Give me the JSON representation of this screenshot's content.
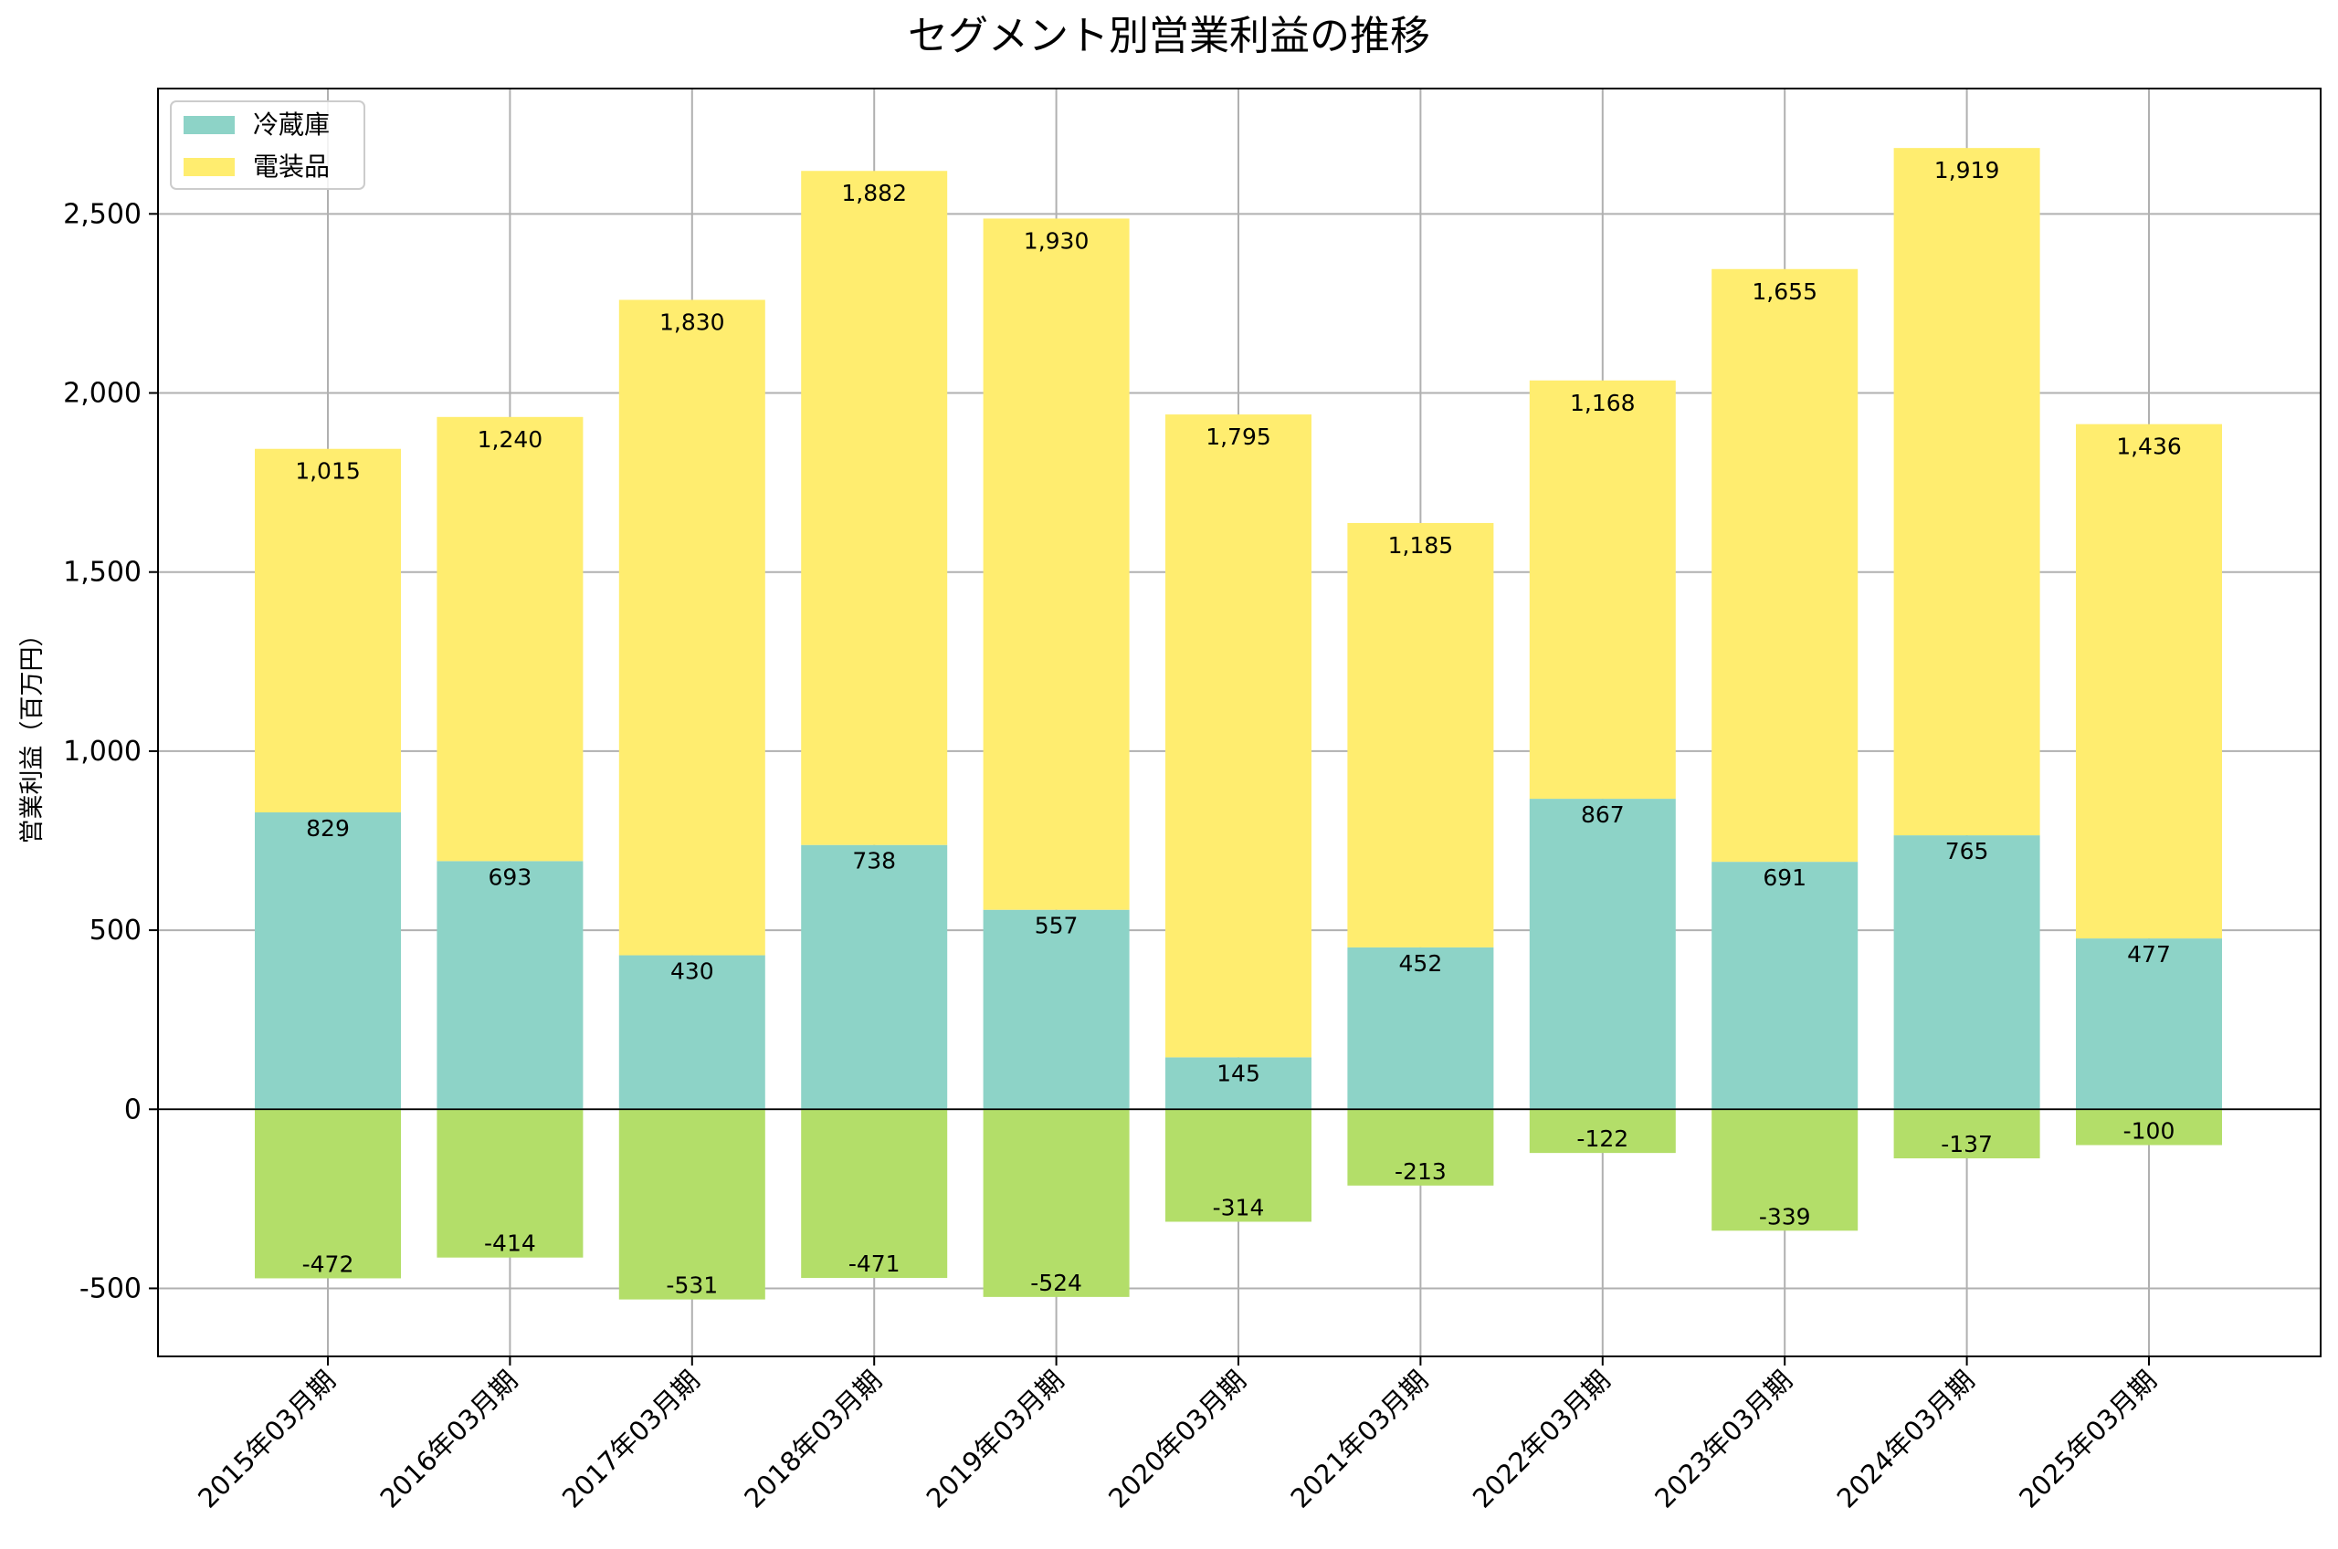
{
  "chart_data": {
    "type": "bar",
    "stacked": true,
    "title": "セグメント別営業利益の推移",
    "ylabel": "営業利益（百万円）",
    "xlabel": "",
    "ylim": [
      -690,
      2850
    ],
    "yticks": [
      -500,
      0,
      500,
      1000,
      1500,
      2000,
      2500
    ],
    "ytick_labels": [
      "-500",
      "0",
      "500",
      "1,000",
      "1,500",
      "2,000",
      "2,500"
    ],
    "grid": true,
    "legend_position": "top-left",
    "categories": [
      "2015年03月期",
      "2016年03月期",
      "2017年03月期",
      "2018年03月期",
      "2019年03月期",
      "2020年03月期",
      "2021年03月期",
      "2022年03月期",
      "2023年03月期",
      "2024年03月期",
      "2025年03月期"
    ],
    "series": [
      {
        "name": "冷蔵庫",
        "color": "#8dd3c7",
        "values": [
          829,
          693,
          430,
          738,
          557,
          145,
          452,
          867,
          691,
          765,
          477
        ],
        "labels": [
          "829",
          "693",
          "430",
          "738",
          "557",
          "145",
          "452",
          "867",
          "691",
          "765",
          "477"
        ]
      },
      {
        "name": "電装品",
        "color": "#ffed6f",
        "values": [
          1015,
          1240,
          1830,
          1882,
          1930,
          1795,
          1185,
          1168,
          1655,
          1919,
          1436
        ],
        "labels": [
          "1,015",
          "1,240",
          "1,830",
          "1,882",
          "1,930",
          "1,795",
          "1,185",
          "1,168",
          "1,655",
          "1,919",
          "1,436"
        ]
      },
      {
        "name": "",
        "color": "#b3de69",
        "values": [
          -472,
          -414,
          -531,
          -471,
          -524,
          -314,
          -213,
          -122,
          -339,
          -137,
          -100
        ],
        "labels": [
          "-472",
          "-414",
          "-531",
          "-471",
          "-524",
          "-314",
          "-213",
          "-122",
          "-339",
          "-137",
          "-100"
        ]
      }
    ]
  }
}
